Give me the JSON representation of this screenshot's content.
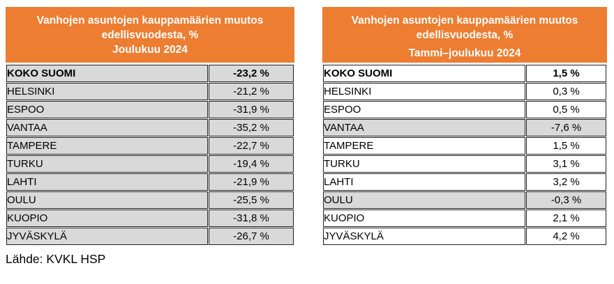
{
  "colors": {
    "accent_orange": "#ED7D31",
    "row_gray": "#D9D9D9",
    "border_black": "#1F1F1F",
    "header_text": "#FFFFFF"
  },
  "tables": [
    {
      "title_line1": "Vanhojen asuntojen kauppamäärien muutos",
      "title_line2": "edellisvuodesta, %",
      "period": "Joulukuu 2024",
      "rows": [
        {
          "label": "KOKO SUOMI",
          "value": "-23,2 %",
          "bold": true,
          "shaded": true
        },
        {
          "label": "HELSINKI",
          "value": "-21,2 %",
          "bold": false,
          "shaded": true
        },
        {
          "label": "ESPOO",
          "value": "-31,9 %",
          "bold": false,
          "shaded": true
        },
        {
          "label": "VANTAA",
          "value": "-35,2 %",
          "bold": false,
          "shaded": true
        },
        {
          "label": "TAMPERE",
          "value": "-22,7 %",
          "bold": false,
          "shaded": true
        },
        {
          "label": "TURKU",
          "value": "-19,4 %",
          "bold": false,
          "shaded": true
        },
        {
          "label": "LAHTI",
          "value": "-21,9 %",
          "bold": false,
          "shaded": true
        },
        {
          "label": "OULU",
          "value": "-25,5 %",
          "bold": false,
          "shaded": true
        },
        {
          "label": "KUOPIO",
          "value": "-31,8 %",
          "bold": false,
          "shaded": true
        },
        {
          "label": "JYVÄSKYLÄ",
          "value": "-26,7 %",
          "bold": false,
          "shaded": true
        }
      ]
    },
    {
      "title_line1": "Vanhojen asuntojen kauppamäärien muutos",
      "title_line2": "edellisvuodesta, %",
      "period": "Tammi–joulukuu 2024",
      "rows": [
        {
          "label": "KOKO SUOMI",
          "value": "1,5 %",
          "bold": true,
          "shaded": false
        },
        {
          "label": "HELSINKI",
          "value": "0,3 %",
          "bold": false,
          "shaded": false
        },
        {
          "label": "ESPOO",
          "value": "0,5 %",
          "bold": false,
          "shaded": false
        },
        {
          "label": "VANTAA",
          "value": "-7,6 %",
          "bold": false,
          "shaded": true
        },
        {
          "label": "TAMPERE",
          "value": "1,5 %",
          "bold": false,
          "shaded": false
        },
        {
          "label": "TURKU",
          "value": "3,1 %",
          "bold": false,
          "shaded": false
        },
        {
          "label": "LAHTI",
          "value": "3,2 %",
          "bold": false,
          "shaded": false
        },
        {
          "label": "OULU",
          "value": "-0,3 %",
          "bold": false,
          "shaded": true
        },
        {
          "label": "KUOPIO",
          "value": "2,1 %",
          "bold": false,
          "shaded": false
        },
        {
          "label": "JYVÄSKYLÄ",
          "value": "4,2 %",
          "bold": false,
          "shaded": false
        }
      ]
    }
  ],
  "footer": {
    "source": "Lähde: KVKL HSP"
  },
  "chart_data": [
    {
      "type": "table",
      "title": "Vanhojen asuntojen kauppamäärien muutos edellisvuodesta, %",
      "subtitle": "Joulukuu 2024",
      "categories": [
        "KOKO SUOMI",
        "HELSINKI",
        "ESPOO",
        "VANTAA",
        "TAMPERE",
        "TURKU",
        "LAHTI",
        "OULU",
        "KUOPIO",
        "JYVÄSKYLÄ"
      ],
      "values": [
        -23.2,
        -21.2,
        -31.9,
        -35.2,
        -22.7,
        -19.4,
        -21.9,
        -25.5,
        -31.8,
        -26.7
      ],
      "unit": "%"
    },
    {
      "type": "table",
      "title": "Vanhojen asuntojen kauppamäärien muutos edellisvuodesta, %",
      "subtitle": "Tammi–joulukuu 2024",
      "categories": [
        "KOKO SUOMI",
        "HELSINKI",
        "ESPOO",
        "VANTAA",
        "TAMPERE",
        "TURKU",
        "LAHTI",
        "OULU",
        "KUOPIO",
        "JYVÄSKYLÄ"
      ],
      "values": [
        1.5,
        0.3,
        0.5,
        -7.6,
        1.5,
        3.1,
        3.2,
        -0.3,
        2.1,
        4.2
      ],
      "unit": "%"
    }
  ]
}
